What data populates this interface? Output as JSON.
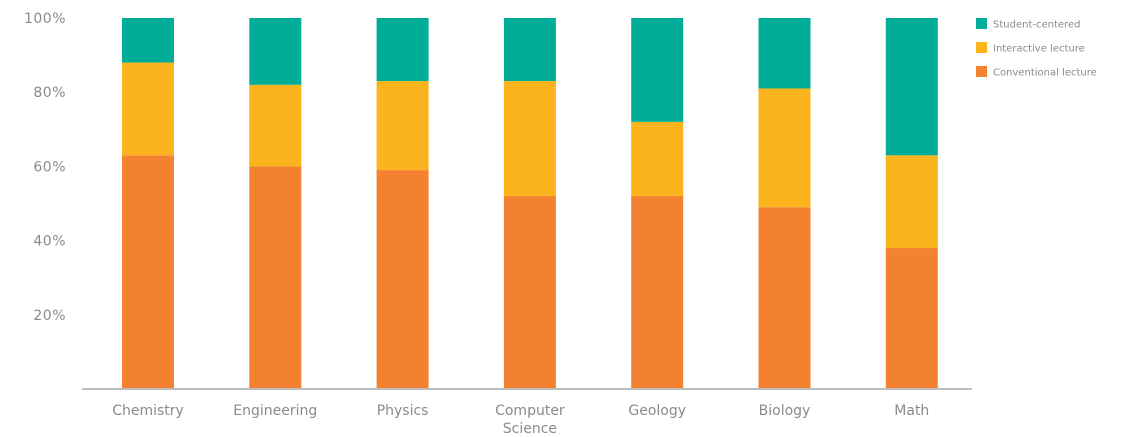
{
  "chart_data": {
    "type": "bar",
    "stacked": true,
    "categories": [
      "Chemistry",
      "Engineering",
      "Physics",
      "Computer\nScience",
      "Geology",
      "Biology",
      "Math"
    ],
    "series": [
      {
        "name": "Conventional lecture",
        "color": "#f4812f",
        "values": [
          63,
          60,
          59,
          52,
          52,
          49,
          38
        ]
      },
      {
        "name": "Interactive lecture",
        "color": "#fbb41e",
        "values": [
          25,
          22,
          24,
          31,
          20,
          32,
          25
        ]
      },
      {
        "name": "Student-centered",
        "color": "#00ae98",
        "values": [
          12,
          18,
          17,
          17,
          28,
          19,
          37
        ]
      }
    ],
    "legend_order": [
      "Student-centered",
      "Interactive lecture",
      "Conventional lecture"
    ],
    "ylim": [
      0,
      100
    ],
    "yticks": [
      20,
      40,
      60,
      80,
      100
    ],
    "ytick_labels": [
      "20%",
      "40%",
      "60%",
      "80%",
      "100%"
    ],
    "legend_position": "top-right",
    "grid": false
  }
}
